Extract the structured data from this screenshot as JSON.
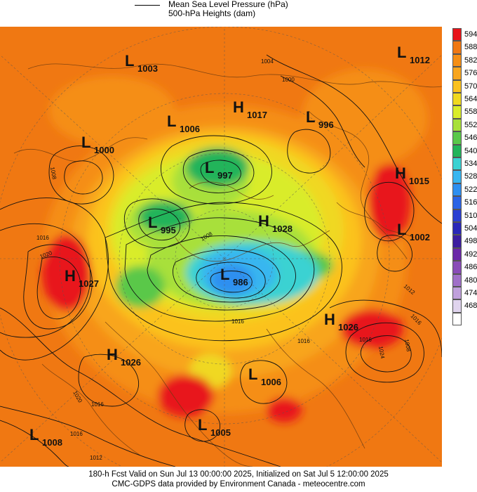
{
  "legend": {
    "line1": "Mean Sea Level Pressure (hPa)",
    "line2": "500-hPa Heights (dam)"
  },
  "colorbar": {
    "levels": [
      {
        "label": "594",
        "color": "#e8141a"
      },
      {
        "label": "588",
        "color": "#f07812"
      },
      {
        "label": "582",
        "color": "#f58e14"
      },
      {
        "label": "576",
        "color": "#f8a51e"
      },
      {
        "label": "570",
        "color": "#fbc21e"
      },
      {
        "label": "564",
        "color": "#f0d820"
      },
      {
        "label": "558",
        "color": "#d9ec2a"
      },
      {
        "label": "552",
        "color": "#a8e03a"
      },
      {
        "label": "546",
        "color": "#5ac84a"
      },
      {
        "label": "540",
        "color": "#22b45a"
      },
      {
        "label": "534",
        "color": "#3ad2d2"
      },
      {
        "label": "528",
        "color": "#38b6f0"
      },
      {
        "label": "522",
        "color": "#2e8ff0"
      },
      {
        "label": "516",
        "color": "#2a64e6"
      },
      {
        "label": "510",
        "color": "#2a3fd2"
      },
      {
        "label": "504",
        "color": "#2a28b8"
      },
      {
        "label": "498",
        "color": "#3c1ea0"
      },
      {
        "label": "492",
        "color": "#6a28a8"
      },
      {
        "label": "486",
        "color": "#8a4cb8"
      },
      {
        "label": "480",
        "color": "#a070c8"
      },
      {
        "label": "474",
        "color": "#c0a0dc"
      },
      {
        "label": "468",
        "color": "#e0d4ee"
      },
      {
        "label": "",
        "color": "#ffffff"
      }
    ]
  },
  "systems": [
    {
      "type": "L",
      "value": "1003"
    },
    {
      "type": "L",
      "value": "1012"
    },
    {
      "type": "H",
      "value": "1017"
    },
    {
      "type": "L",
      "value": "996"
    },
    {
      "type": "L",
      "value": "1006"
    },
    {
      "type": "L",
      "value": "1000"
    },
    {
      "type": "L",
      "value": "997"
    },
    {
      "type": "H",
      "value": "1015"
    },
    {
      "type": "L",
      "value": "995"
    },
    {
      "type": "H",
      "value": "1028"
    },
    {
      "type": "L",
      "value": "1002"
    },
    {
      "type": "H",
      "value": "1027"
    },
    {
      "type": "L",
      "value": "986"
    },
    {
      "type": "H",
      "value": "1026"
    },
    {
      "type": "H",
      "value": "1026"
    },
    {
      "type": "L",
      "value": "1006"
    },
    {
      "type": "L",
      "value": "1005"
    },
    {
      "type": "L",
      "value": "1008"
    }
  ],
  "isobar_labels": [
    "1004",
    "1000",
    "1008",
    "1016",
    "1020",
    "1016",
    "1016",
    "1012",
    "1020",
    "1016",
    "1012",
    "1016",
    "1024",
    "1008",
    "1016",
    "1016",
    "1008"
  ],
  "footer": {
    "line1": "180-h Fcst Valid on Sun Jul 13 00:00:00 2025, Initialized on Sat Jul  5 12:00:00 2025",
    "line2": "CMC-GDPS data provided by Environment Canada - meteocentre.com"
  }
}
